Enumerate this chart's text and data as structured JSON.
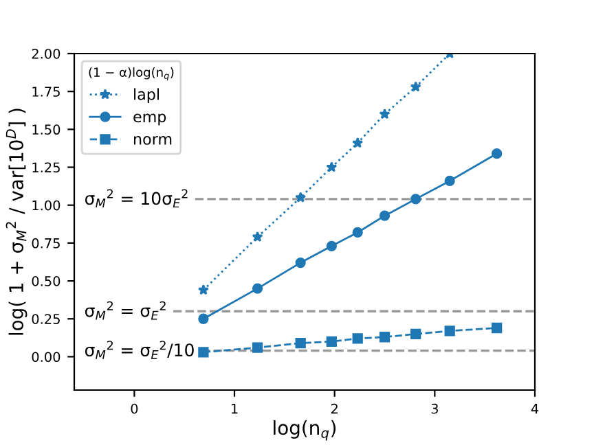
{
  "chart_data": {
    "type": "line",
    "xlabel": "log(n$_{q}$)",
    "ylabel": "log( 1 + σ$_{M}$$^{2}$ / var[10$^{D}$] )",
    "legend_title": "(1 − α)log(n$_{q}$)",
    "x": [
      0.69,
      1.23,
      1.66,
      1.97,
      2.23,
      2.5,
      2.81,
      3.15,
      3.62
    ],
    "series": [
      {
        "name": "lapl",
        "color": "#1f77b4",
        "marker": "star",
        "line_style": "dotted",
        "values": [
          0.44,
          0.79,
          1.05,
          1.25,
          1.41,
          1.6,
          1.78,
          2.0,
          null
        ]
      },
      {
        "name": "emp",
        "color": "#1f77b4",
        "marker": "circle",
        "line_style": "solid",
        "values": [
          0.25,
          0.45,
          0.62,
          0.73,
          0.82,
          0.93,
          1.04,
          1.16,
          1.34
        ]
      },
      {
        "name": "norm",
        "color": "#1f77b4",
        "marker": "square",
        "line_style": "dashed",
        "values": [
          0.03,
          0.06,
          0.09,
          0.1,
          0.12,
          0.13,
          0.15,
          0.17,
          0.19
        ]
      }
    ],
    "ref_lines": [
      {
        "axis": "y",
        "value": 1.04,
        "color": "#999999",
        "line_style": "dashed"
      },
      {
        "axis": "y",
        "value": 0.3,
        "color": "#999999",
        "line_style": "dashed"
      },
      {
        "axis": "y",
        "value": 0.04,
        "color": "#999999",
        "line_style": "dashed"
      }
    ],
    "annotations": [
      "σ$_{M}$$^{2}$ = 10σ$_{E}$$^{2}$",
      "σ$_{M}$$^{2}$ = σ$_{E}$$^{2}$",
      "σ$_{M}$$^{2}$ = σ$_{E}$$^{2}$/10"
    ],
    "xlim": [
      -0.6,
      4
    ],
    "ylim": [
      -0.22,
      2.0
    ],
    "xticks": [
      0,
      1,
      2,
      3,
      4
    ],
    "yticks": [
      {
        "value": 0,
        "label": "0.00"
      },
      {
        "value": 0.25,
        "label": "0.25"
      },
      {
        "value": 0.5,
        "label": "0.50"
      },
      {
        "value": 0.75,
        "label": "0.75"
      },
      {
        "value": 1.0,
        "label": "1.00"
      },
      {
        "value": 1.25,
        "label": "1.25"
      },
      {
        "value": 1.5,
        "label": "1.50"
      },
      {
        "value": 1.75,
        "label": "1.75"
      },
      {
        "value": 2.0,
        "label": "2.00"
      }
    ],
    "legend": "top left",
    "grid": false
  }
}
